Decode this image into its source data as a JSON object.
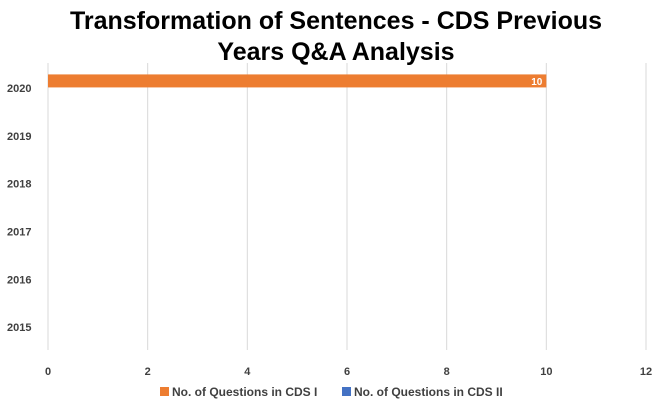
{
  "chart_data": {
    "type": "bar",
    "orientation": "horizontal",
    "title_lines": [
      "Transformation of Sentences - CDS Previous",
      "Years Q&A Analysis"
    ],
    "categories": [
      "2020",
      "2019",
      "2018",
      "2017",
      "2016",
      "2015"
    ],
    "series": [
      {
        "name": "No. of Questions in CDS I",
        "color": "#ED7D31",
        "values": [
          10,
          null,
          null,
          null,
          null,
          null
        ]
      },
      {
        "name": "No. of Questions in CDS II",
        "color": "#4472C4",
        "values": [
          null,
          null,
          null,
          null,
          null,
          null
        ]
      }
    ],
    "xlim": [
      0,
      12
    ],
    "xticks": [
      "0",
      "2",
      "4",
      "6",
      "8",
      "10",
      "12"
    ],
    "grid": true,
    "legend_position": "bottom",
    "data_labels": [
      {
        "series": "No. of Questions in CDS I",
        "category": "2020",
        "text": "10"
      }
    ]
  }
}
